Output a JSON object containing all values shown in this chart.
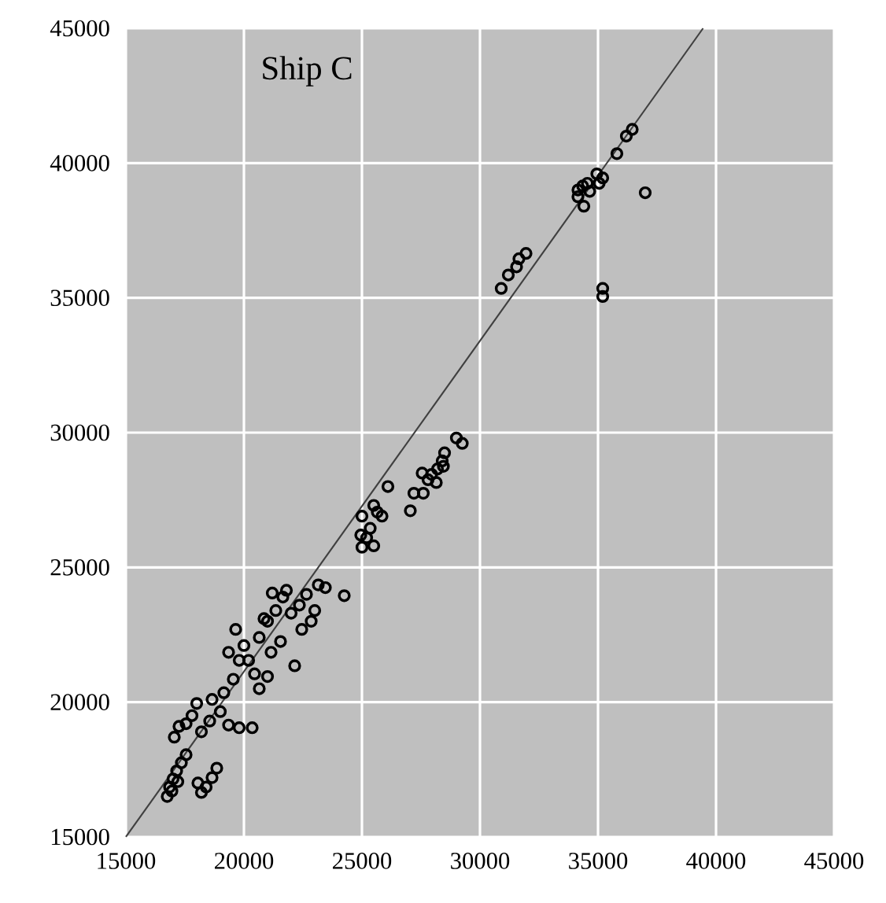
{
  "chart_data": {
    "type": "scatter",
    "annotations": [
      "Ship C"
    ],
    "xlim": [
      15000,
      45000
    ],
    "ylim": [
      15000,
      45000
    ],
    "xticks": [
      15000,
      20000,
      25000,
      30000,
      35000,
      40000,
      45000
    ],
    "yticks": [
      15000,
      20000,
      25000,
      30000,
      35000,
      40000,
      45000
    ],
    "grid": true,
    "marker": "circle",
    "series": [
      {
        "color": "#000000",
        "x": [
          16750,
          16850,
          17000,
          17150,
          17350,
          17550,
          17200,
          16950,
          18200,
          18400,
          18650,
          18850,
          18050,
          17050,
          17250,
          17550,
          17800,
          18200,
          18550,
          19000,
          19350,
          19800,
          20350,
          18000,
          18650,
          19150,
          19550,
          19800,
          20000,
          19650,
          20200,
          20450,
          20650,
          21000,
          21150,
          19350,
          20850,
          20650,
          21000,
          21350,
          21650,
          22000,
          22350,
          22650,
          23000,
          23150,
          22150,
          21550,
          22450,
          21800,
          22850,
          23450,
          24250,
          21200,
          25000,
          24950,
          25350,
          25200,
          25000,
          25500,
          25500,
          25650,
          25850,
          26100,
          27050,
          27200,
          27550,
          27600,
          27800,
          27950,
          28150,
          28200,
          28450,
          28400,
          28500,
          29000,
          29250,
          30900,
          31200,
          31550,
          31650,
          31950,
          35200,
          35200,
          34150,
          34150,
          34400,
          34350,
          34550,
          34950,
          35200,
          35050,
          34650,
          35800,
          36200,
          36450,
          37000
        ],
        "values": [
          16500,
          16850,
          17150,
          17450,
          17750,
          18050,
          17050,
          16700,
          16650,
          16850,
          17200,
          17550,
          17000,
          18700,
          19100,
          19200,
          19500,
          18900,
          19300,
          19650,
          19150,
          19050,
          19050,
          19950,
          20100,
          20350,
          20850,
          21550,
          22100,
          22700,
          21550,
          21050,
          20500,
          20950,
          21850,
          21850,
          23100,
          22400,
          23000,
          23400,
          23900,
          23300,
          23600,
          24000,
          23400,
          24350,
          21350,
          22250,
          22700,
          24150,
          23000,
          24250,
          23950,
          24050,
          26900,
          26200,
          26450,
          26100,
          25750,
          25800,
          27300,
          27050,
          26900,
          28000,
          27100,
          27750,
          28500,
          27750,
          28250,
          28450,
          28150,
          28650,
          28750,
          28950,
          29250,
          29800,
          29600,
          35350,
          35850,
          36150,
          36450,
          36650,
          35350,
          35050,
          39000,
          38750,
          38400,
          39150,
          39250,
          39600,
          39450,
          39250,
          38950,
          40350,
          41000,
          41250,
          38900
        ]
      },
      {
        "type": "line",
        "color": "#404040",
        "marker": "none",
        "x": [
          15000,
          39450
        ],
        "values": [
          15000,
          45000
        ]
      }
    ]
  }
}
